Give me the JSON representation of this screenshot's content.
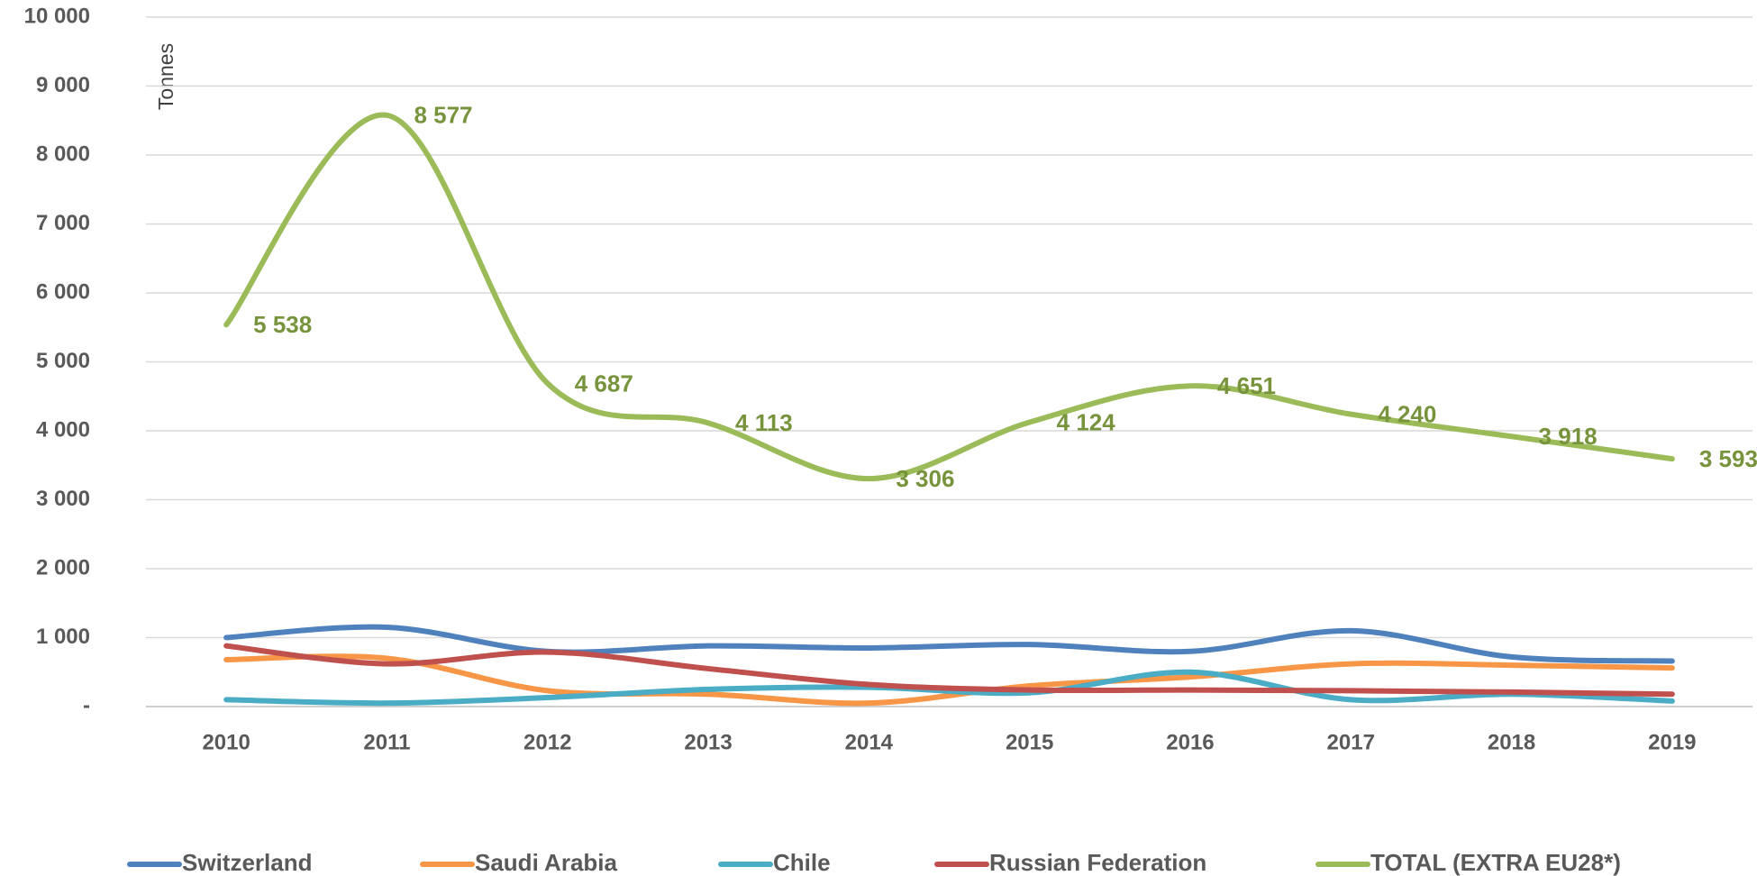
{
  "chart_data": {
    "type": "line",
    "y_axis_label": "Tonnes",
    "categories": [
      "2010",
      "2011",
      "2012",
      "2013",
      "2014",
      "2015",
      "2016",
      "2017",
      "2018",
      "2019"
    ],
    "series": [
      {
        "name": "Switzerland",
        "color": "#4f81bd",
        "values": [
          1000,
          1150,
          800,
          880,
          850,
          900,
          800,
          1100,
          720,
          660
        ]
      },
      {
        "name": "Saudi Arabia",
        "color": "#f79646",
        "values": [
          680,
          700,
          230,
          180,
          50,
          300,
          430,
          620,
          600,
          560
        ]
      },
      {
        "name": "Chile",
        "color": "#4bacc6",
        "values": [
          100,
          50,
          130,
          250,
          280,
          200,
          500,
          100,
          180,
          80
        ]
      },
      {
        "name": "Russian Federation",
        "color": "#c0504d",
        "values": [
          880,
          620,
          790,
          550,
          320,
          240,
          240,
          230,
          210,
          180
        ]
      },
      {
        "name": "TOTAL (EXTRA EU28*)",
        "color": "#9bbb59",
        "label_color": "#77933c",
        "values": [
          5538,
          8577,
          4687,
          4113,
          3306,
          4124,
          4651,
          4240,
          3918,
          3593
        ],
        "value_labels": [
          "5 538",
          "8 577",
          "4 687",
          "4 113",
          "3 306",
          "4 124",
          "4 651",
          "4 240",
          "3 918",
          "3 593"
        ]
      }
    ],
    "ylim": [
      0,
      10000
    ],
    "yticks": [
      {
        "value": 0,
        "label": "-"
      },
      {
        "value": 1000,
        "label": "1 000"
      },
      {
        "value": 2000,
        "label": "2 000"
      },
      {
        "value": 3000,
        "label": "3 000"
      },
      {
        "value": 4000,
        "label": "4 000"
      },
      {
        "value": 5000,
        "label": "5 000"
      },
      {
        "value": 6000,
        "label": "6 000"
      },
      {
        "value": 7000,
        "label": "7 000"
      },
      {
        "value": 8000,
        "label": "8 000"
      },
      {
        "value": 9000,
        "label": "9 000"
      },
      {
        "value": 10000,
        "label": "10 000"
      }
    ],
    "grid": true,
    "smooth": true,
    "legend": "bottom"
  }
}
